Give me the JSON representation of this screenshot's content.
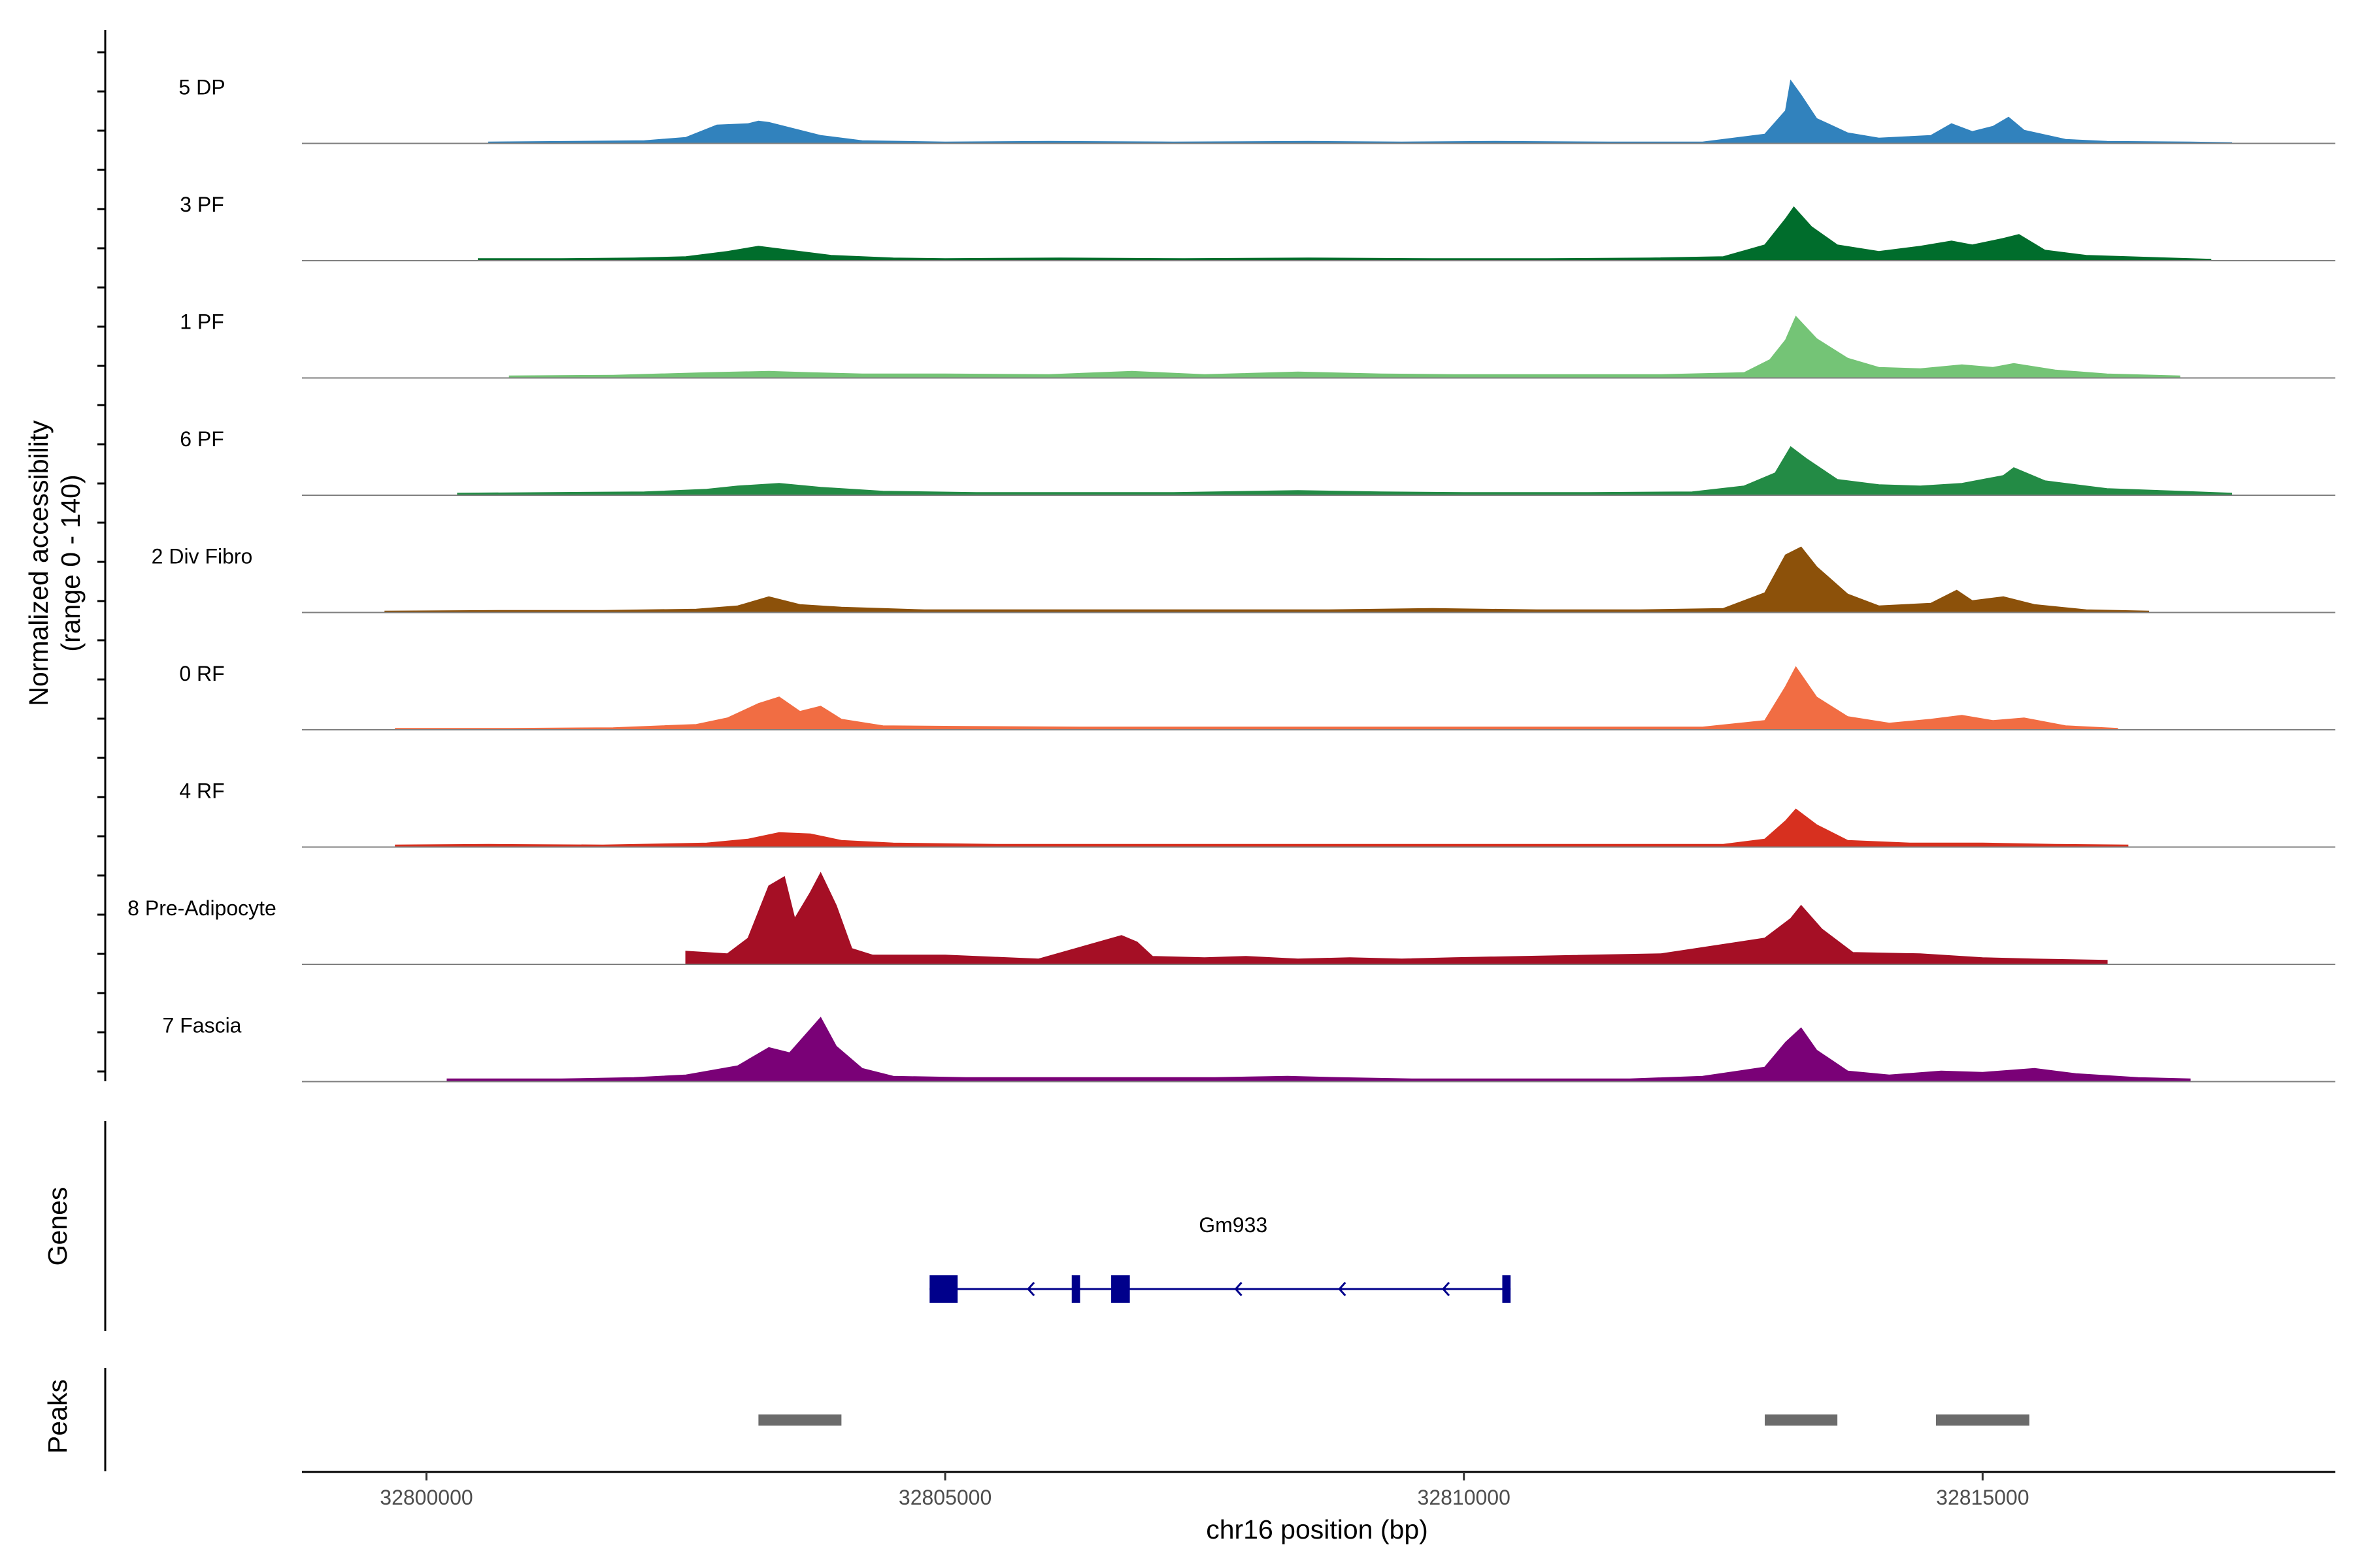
{
  "chart_data": {
    "type": "area",
    "title": "",
    "region": {
      "chrom": "chr16",
      "start": 32798800,
      "end": 32818400
    },
    "xlabel": "chr16 position (bp)",
    "ylabel": "Normalized accessibility",
    "ylabel_range": "(range 0 - 140)",
    "ylim": [
      0,
      140
    ],
    "x_ticks": [
      32800000,
      32805000,
      32810000,
      32815000
    ],
    "x_tick_labels": [
      "32800000",
      "32805000",
      "32810000",
      "32815000"
    ],
    "series": [
      {
        "name": "5 DP",
        "color": "#3182BD",
        "points": [
          [
            32800600,
            2
          ],
          [
            32801400,
            3
          ],
          [
            32802100,
            4
          ],
          [
            32802500,
            9
          ],
          [
            32802800,
            28
          ],
          [
            32803100,
            30
          ],
          [
            32803200,
            34
          ],
          [
            32803300,
            32
          ],
          [
            32803500,
            24
          ],
          [
            32803800,
            12
          ],
          [
            32804200,
            4
          ],
          [
            32805000,
            2
          ],
          [
            32806000,
            3
          ],
          [
            32807200,
            2
          ],
          [
            32808500,
            3
          ],
          [
            32809400,
            2
          ],
          [
            32810300,
            3
          ],
          [
            32811400,
            2
          ],
          [
            32812300,
            2
          ],
          [
            32812900,
            14
          ],
          [
            32813100,
            50
          ],
          [
            32813150,
            96
          ],
          [
            32813250,
            74
          ],
          [
            32813400,
            38
          ],
          [
            32813700,
            16
          ],
          [
            32814000,
            8
          ],
          [
            32814500,
            12
          ],
          [
            32814700,
            30
          ],
          [
            32814900,
            18
          ],
          [
            32815100,
            26
          ],
          [
            32815250,
            40
          ],
          [
            32815400,
            20
          ],
          [
            32815800,
            6
          ],
          [
            32816200,
            3
          ],
          [
            32817000,
            2
          ],
          [
            32817400,
            1
          ]
        ]
      },
      {
        "name": "3 PF",
        "color": "#006D2C",
        "points": [
          [
            32800500,
            3
          ],
          [
            32801300,
            3
          ],
          [
            32802000,
            4
          ],
          [
            32802500,
            6
          ],
          [
            32802900,
            14
          ],
          [
            32803200,
            22
          ],
          [
            32803500,
            16
          ],
          [
            32803900,
            8
          ],
          [
            32804500,
            4
          ],
          [
            32805000,
            3
          ],
          [
            32806100,
            4
          ],
          [
            32807300,
            3
          ],
          [
            32808500,
            4
          ],
          [
            32809700,
            3
          ],
          [
            32810800,
            3
          ],
          [
            32811800,
            4
          ],
          [
            32812500,
            6
          ],
          [
            32812900,
            24
          ],
          [
            32813100,
            64
          ],
          [
            32813180,
            82
          ],
          [
            32813350,
            52
          ],
          [
            32813600,
            24
          ],
          [
            32814000,
            14
          ],
          [
            32814400,
            22
          ],
          [
            32814700,
            30
          ],
          [
            32814900,
            24
          ],
          [
            32815200,
            34
          ],
          [
            32815350,
            40
          ],
          [
            32815600,
            16
          ],
          [
            32816000,
            8
          ],
          [
            32816800,
            4
          ],
          [
            32817200,
            2
          ]
        ]
      },
      {
        "name": "1 PF",
        "color": "#74C476",
        "points": [
          [
            32800800,
            3
          ],
          [
            32801800,
            4
          ],
          [
            32802700,
            8
          ],
          [
            32803300,
            10
          ],
          [
            32803700,
            8
          ],
          [
            32804200,
            6
          ],
          [
            32805000,
            6
          ],
          [
            32806000,
            5
          ],
          [
            32806800,
            10
          ],
          [
            32807500,
            5
          ],
          [
            32808400,
            9
          ],
          [
            32809200,
            6
          ],
          [
            32809900,
            5
          ],
          [
            32810800,
            5
          ],
          [
            32811900,
            5
          ],
          [
            32812700,
            8
          ],
          [
            32812950,
            28
          ],
          [
            32813100,
            58
          ],
          [
            32813200,
            94
          ],
          [
            32813400,
            60
          ],
          [
            32813700,
            30
          ],
          [
            32814000,
            16
          ],
          [
            32814400,
            14
          ],
          [
            32814800,
            20
          ],
          [
            32815100,
            16
          ],
          [
            32815300,
            22
          ],
          [
            32815700,
            12
          ],
          [
            32816200,
            6
          ],
          [
            32816900,
            3
          ]
        ]
      },
      {
        "name": "6 PF",
        "color": "#238B45",
        "points": [
          [
            32800300,
            3
          ],
          [
            32801200,
            4
          ],
          [
            32802100,
            5
          ],
          [
            32802700,
            9
          ],
          [
            32803000,
            14
          ],
          [
            32803400,
            18
          ],
          [
            32803800,
            12
          ],
          [
            32804400,
            6
          ],
          [
            32805300,
            4
          ],
          [
            32806100,
            4
          ],
          [
            32807200,
            4
          ],
          [
            32808400,
            7
          ],
          [
            32809200,
            5
          ],
          [
            32810000,
            4
          ],
          [
            32811200,
            4
          ],
          [
            32812200,
            5
          ],
          [
            32812700,
            14
          ],
          [
            32813000,
            34
          ],
          [
            32813150,
            74
          ],
          [
            32813300,
            56
          ],
          [
            32813600,
            24
          ],
          [
            32814000,
            16
          ],
          [
            32814400,
            14
          ],
          [
            32814800,
            18
          ],
          [
            32815200,
            30
          ],
          [
            32815300,
            42
          ],
          [
            32815600,
            22
          ],
          [
            32816200,
            10
          ],
          [
            32816900,
            6
          ],
          [
            32817400,
            3
          ]
        ]
      },
      {
        "name": "2 Div Fibro",
        "color": "#8C510A",
        "points": [
          [
            32799600,
            2
          ],
          [
            32800700,
            3
          ],
          [
            32801700,
            3
          ],
          [
            32802600,
            5
          ],
          [
            32803000,
            10
          ],
          [
            32803300,
            24
          ],
          [
            32803600,
            12
          ],
          [
            32804000,
            8
          ],
          [
            32804800,
            4
          ],
          [
            32805800,
            4
          ],
          [
            32806800,
            4
          ],
          [
            32807800,
            4
          ],
          [
            32808700,
            4
          ],
          [
            32809700,
            6
          ],
          [
            32810700,
            4
          ],
          [
            32811700,
            4
          ],
          [
            32812500,
            6
          ],
          [
            32812900,
            30
          ],
          [
            32813100,
            88
          ],
          [
            32813250,
            100
          ],
          [
            32813400,
            70
          ],
          [
            32813700,
            28
          ],
          [
            32814000,
            10
          ],
          [
            32814500,
            14
          ],
          [
            32814750,
            34
          ],
          [
            32814900,
            18
          ],
          [
            32815200,
            24
          ],
          [
            32815500,
            12
          ],
          [
            32816000,
            4
          ],
          [
            32816600,
            2
          ]
        ]
      },
      {
        "name": "0 RF",
        "color": "#F16D43",
        "points": [
          [
            32799700,
            2
          ],
          [
            32800800,
            2
          ],
          [
            32801800,
            3
          ],
          [
            32802600,
            8
          ],
          [
            32802900,
            18
          ],
          [
            32803200,
            40
          ],
          [
            32803400,
            50
          ],
          [
            32803600,
            28
          ],
          [
            32803800,
            36
          ],
          [
            32804000,
            16
          ],
          [
            32804400,
            6
          ],
          [
            32805200,
            5
          ],
          [
            32806300,
            4
          ],
          [
            32807300,
            4
          ],
          [
            32808300,
            4
          ],
          [
            32809300,
            4
          ],
          [
            32810300,
            4
          ],
          [
            32811300,
            4
          ],
          [
            32812300,
            4
          ],
          [
            32812900,
            14
          ],
          [
            32813100,
            66
          ],
          [
            32813200,
            96
          ],
          [
            32813400,
            50
          ],
          [
            32813700,
            20
          ],
          [
            32814100,
            10
          ],
          [
            32814500,
            16
          ],
          [
            32814800,
            22
          ],
          [
            32815100,
            14
          ],
          [
            32815400,
            18
          ],
          [
            32815800,
            6
          ],
          [
            32816300,
            2
          ]
        ]
      },
      {
        "name": "4 RF",
        "color": "#D7301F",
        "points": [
          [
            32799700,
            3
          ],
          [
            32800600,
            4
          ],
          [
            32801700,
            3
          ],
          [
            32802700,
            6
          ],
          [
            32803100,
            12
          ],
          [
            32803400,
            22
          ],
          [
            32803700,
            20
          ],
          [
            32804000,
            10
          ],
          [
            32804500,
            6
          ],
          [
            32805500,
            4
          ],
          [
            32806500,
            4
          ],
          [
            32807500,
            4
          ],
          [
            32808500,
            4
          ],
          [
            32809500,
            4
          ],
          [
            32810500,
            4
          ],
          [
            32811500,
            4
          ],
          [
            32812500,
            4
          ],
          [
            32812900,
            12
          ],
          [
            32813100,
            40
          ],
          [
            32813200,
            58
          ],
          [
            32813400,
            34
          ],
          [
            32813700,
            10
          ],
          [
            32814300,
            6
          ],
          [
            32815000,
            6
          ],
          [
            32815700,
            4
          ],
          [
            32816400,
            3
          ]
        ]
      },
      {
        "name": "8 Pre-Adipocyte",
        "color": "#A50F25",
        "points": [
          [
            32802500,
            20
          ],
          [
            32802900,
            16
          ],
          [
            32803100,
            40
          ],
          [
            32803300,
            120
          ],
          [
            32803450,
            134
          ],
          [
            32803550,
            70
          ],
          [
            32803700,
            110
          ],
          [
            32803800,
            140
          ],
          [
            32803950,
            90
          ],
          [
            32804100,
            24
          ],
          [
            32804300,
            14
          ],
          [
            32805000,
            14
          ],
          [
            32805300,
            12
          ],
          [
            32805900,
            8
          ],
          [
            32806700,
            44
          ],
          [
            32806850,
            34
          ],
          [
            32807000,
            12
          ],
          [
            32807500,
            10
          ],
          [
            32807900,
            12
          ],
          [
            32808400,
            8
          ],
          [
            32808900,
            10
          ],
          [
            32809400,
            8
          ],
          [
            32809900,
            10
          ],
          [
            32811900,
            16
          ],
          [
            32812900,
            40
          ],
          [
            32813150,
            70
          ],
          [
            32813250,
            90
          ],
          [
            32813450,
            54
          ],
          [
            32813750,
            18
          ],
          [
            32814400,
            16
          ],
          [
            32815000,
            10
          ],
          [
            32815500,
            8
          ],
          [
            32816200,
            6
          ]
        ]
      },
      {
        "name": "7 Fascia",
        "color": "#7A0177",
        "points": [
          [
            32800200,
            4
          ],
          [
            32800700,
            4
          ],
          [
            32801300,
            4
          ],
          [
            32802000,
            6
          ],
          [
            32802500,
            10
          ],
          [
            32803000,
            24
          ],
          [
            32803300,
            52
          ],
          [
            32803500,
            44
          ],
          [
            32803700,
            80
          ],
          [
            32803800,
            98
          ],
          [
            32803950,
            54
          ],
          [
            32804200,
            20
          ],
          [
            32804500,
            8
          ],
          [
            32805200,
            6
          ],
          [
            32806700,
            6
          ],
          [
            32807600,
            6
          ],
          [
            32808300,
            8
          ],
          [
            32808800,
            6
          ],
          [
            32809500,
            4
          ],
          [
            32811600,
            4
          ],
          [
            32812300,
            8
          ],
          [
            32812900,
            22
          ],
          [
            32813100,
            60
          ],
          [
            32813250,
            82
          ],
          [
            32813400,
            48
          ],
          [
            32813700,
            16
          ],
          [
            32814100,
            10
          ],
          [
            32814600,
            16
          ],
          [
            32815000,
            14
          ],
          [
            32815500,
            20
          ],
          [
            32815900,
            12
          ],
          [
            32816500,
            6
          ],
          [
            32817000,
            4
          ]
        ]
      }
    ],
    "genes": [
      {
        "name": "Gm933",
        "strand": "-",
        "start": 32804850,
        "end": 32810450,
        "exons": [
          [
            32804850,
            32805120
          ],
          [
            32806220,
            32806300
          ],
          [
            32806600,
            32806780
          ],
          [
            32810370,
            32810450
          ]
        ]
      }
    ],
    "peaks": [
      [
        32803200,
        32804000
      ],
      [
        32812900,
        32813600
      ],
      [
        32814550,
        32815450
      ]
    ],
    "panel_labels": {
      "genes": "Genes",
      "peaks": "Peaks"
    }
  }
}
